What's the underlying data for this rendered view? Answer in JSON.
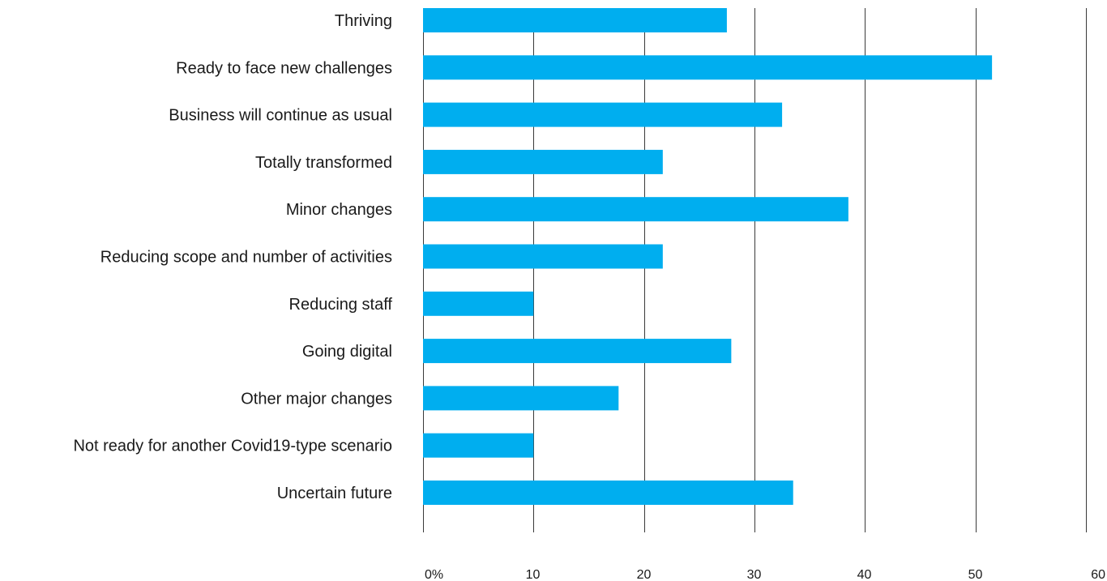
{
  "chart_data": {
    "type": "bar",
    "orientation": "horizontal",
    "categories": [
      "Thriving",
      "Ready to face new challenges",
      "Business will continue as usual",
      "Totally transformed",
      "Minor changes",
      "Reducing scope and number of activities",
      "Reducing staff",
      "Going digital",
      "Other major changes",
      "Not ready for another Covid19-type scenario",
      "Uncertain future"
    ],
    "values": [
      27.5,
      51.5,
      32.5,
      21.7,
      38.5,
      21.7,
      10,
      27.9,
      17.7,
      10,
      33.5
    ],
    "xlim": [
      0,
      60
    ],
    "xticks": [
      "0%",
      "10",
      "20",
      "30",
      "40",
      "50",
      "60"
    ],
    "title": "",
    "xlabel": "",
    "ylabel": "",
    "grid": true,
    "legend": "none",
    "bar_color": "#00aeef",
    "grid_color": "#3a3a3a",
    "text_color": "#1a1a1a"
  }
}
